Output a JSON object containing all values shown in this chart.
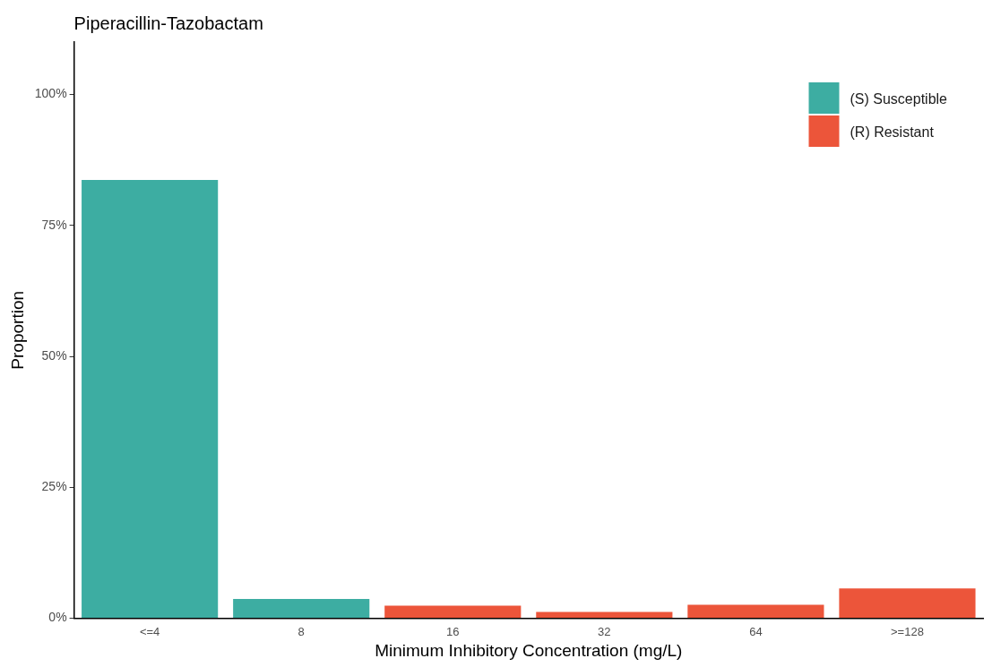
{
  "chart_data": {
    "type": "bar",
    "title": "Piperacillin-Tazobactam",
    "xlabel": "Minimum Inhibitory Concentration (mg/L)",
    "ylabel": "Proportion",
    "categories": [
      "<=4",
      "8",
      "16",
      "32",
      "64",
      ">=128"
    ],
    "series": [
      {
        "name": "(S) Susceptible",
        "color": "#3dada2",
        "values": [
          83.7,
          3.7,
          null,
          null,
          null,
          null
        ]
      },
      {
        "name": "(R) Resistant",
        "color": "#ec553a",
        "values": [
          null,
          null,
          2.4,
          1.2,
          2.6,
          5.7
        ]
      }
    ],
    "stacked": true,
    "ylim": [
      0,
      110
    ],
    "yticks": [
      {
        "value": 0,
        "label": "0%"
      },
      {
        "value": 25,
        "label": "25%"
      },
      {
        "value": 50,
        "label": "50%"
      },
      {
        "value": 75,
        "label": "75%"
      },
      {
        "value": 100,
        "label": "100%"
      }
    ],
    "grid": false,
    "legend": "top right"
  }
}
